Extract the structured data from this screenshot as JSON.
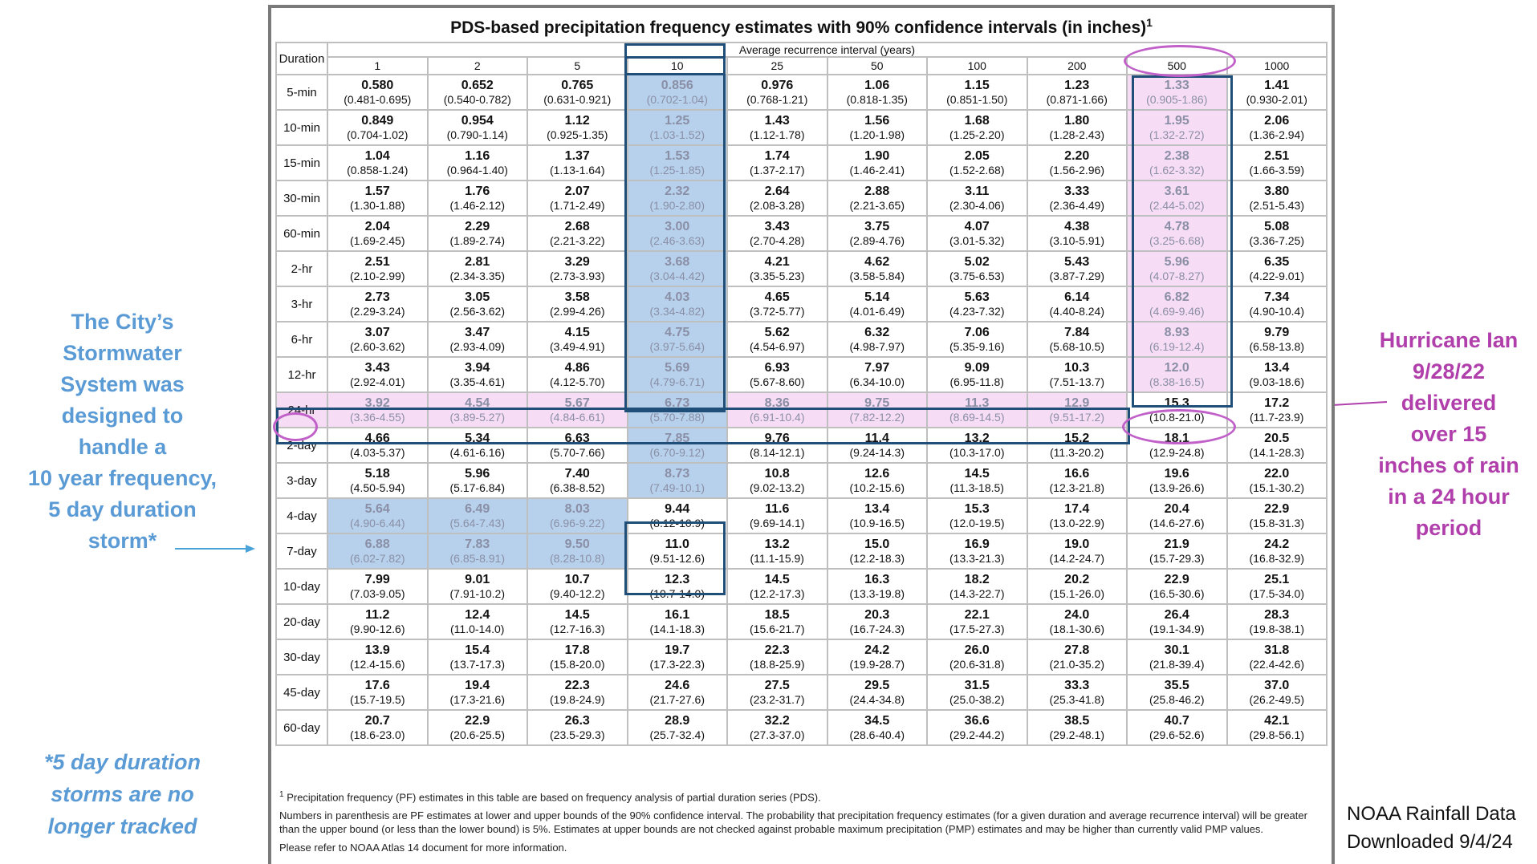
{
  "left_annotation": {
    "lines": [
      "The City’s",
      "Stormwater",
      "System was",
      "designed to",
      "handle a",
      "10 year frequency,",
      "5 day duration",
      "storm*"
    ],
    "color": "#5b9bd5"
  },
  "footnote_annotation": {
    "lines": [
      "*5 day duration",
      "storms are no",
      "longer tracked"
    ]
  },
  "right_annotation": {
    "lines": [
      "Hurricane Ian",
      "9/28/22",
      "delivered",
      "over 15",
      "inches of rain",
      "in a 24 hour",
      "period"
    ],
    "color": "#b03fab"
  },
  "source_note": {
    "lines": [
      "NOAA Rainfall Data",
      "Downloaded 9/4/24"
    ]
  },
  "table": {
    "title": "PDS-based precipitation frequency estimates with 90% confidence intervals (in inches)",
    "title_footnote_mark": "1",
    "duration_header": "Duration",
    "ari_header": "Average recurrence interval (years)",
    "intervals": [
      "1",
      "2",
      "5",
      "10",
      "25",
      "50",
      "100",
      "200",
      "500",
      "1000"
    ],
    "rows": [
      {
        "duration": "5-min",
        "values": [
          [
            "0.580",
            "(0.481-0.695)"
          ],
          [
            "0.652",
            "(0.540-0.782)"
          ],
          [
            "0.765",
            "(0.631-0.921)"
          ],
          [
            "0.856",
            "(0.702-1.04)"
          ],
          [
            "0.976",
            "(0.768-1.21)"
          ],
          [
            "1.06",
            "(0.818-1.35)"
          ],
          [
            "1.15",
            "(0.851-1.50)"
          ],
          [
            "1.23",
            "(0.871-1.66)"
          ],
          [
            "1.33",
            "(0.905-1.86)"
          ],
          [
            "1.41",
            "(0.930-2.01)"
          ]
        ]
      },
      {
        "duration": "10-min",
        "values": [
          [
            "0.849",
            "(0.704-1.02)"
          ],
          [
            "0.954",
            "(0.790-1.14)"
          ],
          [
            "1.12",
            "(0.925-1.35)"
          ],
          [
            "1.25",
            "(1.03-1.52)"
          ],
          [
            "1.43",
            "(1.12-1.78)"
          ],
          [
            "1.56",
            "(1.20-1.98)"
          ],
          [
            "1.68",
            "(1.25-2.20)"
          ],
          [
            "1.80",
            "(1.28-2.43)"
          ],
          [
            "1.95",
            "(1.32-2.72)"
          ],
          [
            "2.06",
            "(1.36-2.94)"
          ]
        ]
      },
      {
        "duration": "15-min",
        "values": [
          [
            "1.04",
            "(0.858-1.24)"
          ],
          [
            "1.16",
            "(0.964-1.40)"
          ],
          [
            "1.37",
            "(1.13-1.64)"
          ],
          [
            "1.53",
            "(1.25-1.85)"
          ],
          [
            "1.74",
            "(1.37-2.17)"
          ],
          [
            "1.90",
            "(1.46-2.41)"
          ],
          [
            "2.05",
            "(1.52-2.68)"
          ],
          [
            "2.20",
            "(1.56-2.96)"
          ],
          [
            "2.38",
            "(1.62-3.32)"
          ],
          [
            "2.51",
            "(1.66-3.59)"
          ]
        ]
      },
      {
        "duration": "30-min",
        "values": [
          [
            "1.57",
            "(1.30-1.88)"
          ],
          [
            "1.76",
            "(1.46-2.12)"
          ],
          [
            "2.07",
            "(1.71-2.49)"
          ],
          [
            "2.32",
            "(1.90-2.80)"
          ],
          [
            "2.64",
            "(2.08-3.28)"
          ],
          [
            "2.88",
            "(2.21-3.65)"
          ],
          [
            "3.11",
            "(2.30-4.06)"
          ],
          [
            "3.33",
            "(2.36-4.49)"
          ],
          [
            "3.61",
            "(2.44-5.02)"
          ],
          [
            "3.80",
            "(2.51-5.43)"
          ]
        ]
      },
      {
        "duration": "60-min",
        "values": [
          [
            "2.04",
            "(1.69-2.45)"
          ],
          [
            "2.29",
            "(1.89-2.74)"
          ],
          [
            "2.68",
            "(2.21-3.22)"
          ],
          [
            "3.00",
            "(2.46-3.63)"
          ],
          [
            "3.43",
            "(2.70-4.28)"
          ],
          [
            "3.75",
            "(2.89-4.76)"
          ],
          [
            "4.07",
            "(3.01-5.32)"
          ],
          [
            "4.38",
            "(3.10-5.91)"
          ],
          [
            "4.78",
            "(3.25-6.68)"
          ],
          [
            "5.08",
            "(3.36-7.25)"
          ]
        ]
      },
      {
        "duration": "2-hr",
        "values": [
          [
            "2.51",
            "(2.10-2.99)"
          ],
          [
            "2.81",
            "(2.34-3.35)"
          ],
          [
            "3.29",
            "(2.73-3.93)"
          ],
          [
            "3.68",
            "(3.04-4.42)"
          ],
          [
            "4.21",
            "(3.35-5.23)"
          ],
          [
            "4.62",
            "(3.58-5.84)"
          ],
          [
            "5.02",
            "(3.75-6.53)"
          ],
          [
            "5.43",
            "(3.87-7.29)"
          ],
          [
            "5.96",
            "(4.07-8.27)"
          ],
          [
            "6.35",
            "(4.22-9.01)"
          ]
        ]
      },
      {
        "duration": "3-hr",
        "values": [
          [
            "2.73",
            "(2.29-3.24)"
          ],
          [
            "3.05",
            "(2.56-3.62)"
          ],
          [
            "3.58",
            "(2.99-4.26)"
          ],
          [
            "4.03",
            "(3.34-4.82)"
          ],
          [
            "4.65",
            "(3.72-5.77)"
          ],
          [
            "5.14",
            "(4.01-6.49)"
          ],
          [
            "5.63",
            "(4.23-7.32)"
          ],
          [
            "6.14",
            "(4.40-8.24)"
          ],
          [
            "6.82",
            "(4.69-9.46)"
          ],
          [
            "7.34",
            "(4.90-10.4)"
          ]
        ]
      },
      {
        "duration": "6-hr",
        "values": [
          [
            "3.07",
            "(2.60-3.62)"
          ],
          [
            "3.47",
            "(2.93-4.09)"
          ],
          [
            "4.15",
            "(3.49-4.91)"
          ],
          [
            "4.75",
            "(3.97-5.64)"
          ],
          [
            "5.62",
            "(4.54-6.97)"
          ],
          [
            "6.32",
            "(4.98-7.97)"
          ],
          [
            "7.06",
            "(5.35-9.16)"
          ],
          [
            "7.84",
            "(5.68-10.5)"
          ],
          [
            "8.93",
            "(6.19-12.4)"
          ],
          [
            "9.79",
            "(6.58-13.8)"
          ]
        ]
      },
      {
        "duration": "12-hr",
        "values": [
          [
            "3.43",
            "(2.92-4.01)"
          ],
          [
            "3.94",
            "(3.35-4.61)"
          ],
          [
            "4.86",
            "(4.12-5.70)"
          ],
          [
            "5.69",
            "(4.79-6.71)"
          ],
          [
            "6.93",
            "(5.67-8.60)"
          ],
          [
            "7.97",
            "(6.34-10.0)"
          ],
          [
            "9.09",
            "(6.95-11.8)"
          ],
          [
            "10.3",
            "(7.51-13.7)"
          ],
          [
            "12.0",
            "(8.38-16.5)"
          ],
          [
            "13.4",
            "(9.03-18.6)"
          ]
        ]
      },
      {
        "duration": "24-hr",
        "values": [
          [
            "3.92",
            "(3.36-4.55)"
          ],
          [
            "4.54",
            "(3.89-5.27)"
          ],
          [
            "5.67",
            "(4.84-6.61)"
          ],
          [
            "6.73",
            "(5.70-7.88)"
          ],
          [
            "8.36",
            "(6.91-10.4)"
          ],
          [
            "9.75",
            "(7.82-12.2)"
          ],
          [
            "11.3",
            "(8.69-14.5)"
          ],
          [
            "12.9",
            "(9.51-17.2)"
          ],
          [
            "15.3",
            "(10.8-21.0)"
          ],
          [
            "17.2",
            "(11.7-23.9)"
          ]
        ]
      },
      {
        "duration": "2-day",
        "values": [
          [
            "4.66",
            "(4.03-5.37)"
          ],
          [
            "5.34",
            "(4.61-6.16)"
          ],
          [
            "6.63",
            "(5.70-7.66)"
          ],
          [
            "7.85",
            "(6.70-9.12)"
          ],
          [
            "9.76",
            "(8.14-12.1)"
          ],
          [
            "11.4",
            "(9.24-14.3)"
          ],
          [
            "13.2",
            "(10.3-17.0)"
          ],
          [
            "15.2",
            "(11.3-20.2)"
          ],
          [
            "18.1",
            "(12.9-24.8)"
          ],
          [
            "20.5",
            "(14.1-28.3)"
          ]
        ]
      },
      {
        "duration": "3-day",
        "values": [
          [
            "5.18",
            "(4.50-5.94)"
          ],
          [
            "5.96",
            "(5.17-6.84)"
          ],
          [
            "7.40",
            "(6.38-8.52)"
          ],
          [
            "8.73",
            "(7.49-10.1)"
          ],
          [
            "10.8",
            "(9.02-13.2)"
          ],
          [
            "12.6",
            "(10.2-15.6)"
          ],
          [
            "14.5",
            "(11.3-18.5)"
          ],
          [
            "16.6",
            "(12.3-21.8)"
          ],
          [
            "19.6",
            "(13.9-26.6)"
          ],
          [
            "22.0",
            "(15.1-30.2)"
          ]
        ]
      },
      {
        "duration": "4-day",
        "values": [
          [
            "5.64",
            "(4.90-6.44)"
          ],
          [
            "6.49",
            "(5.64-7.43)"
          ],
          [
            "8.03",
            "(6.96-9.22)"
          ],
          [
            "9.44",
            "(8.12-10.9)"
          ],
          [
            "11.6",
            "(9.69-14.1)"
          ],
          [
            "13.4",
            "(10.9-16.5)"
          ],
          [
            "15.3",
            "(12.0-19.5)"
          ],
          [
            "17.4",
            "(13.0-22.9)"
          ],
          [
            "20.4",
            "(14.6-27.6)"
          ],
          [
            "22.9",
            "(15.8-31.3)"
          ]
        ]
      },
      {
        "duration": "7-day",
        "values": [
          [
            "6.88",
            "(6.02-7.82)"
          ],
          [
            "7.83",
            "(6.85-8.91)"
          ],
          [
            "9.50",
            "(8.28-10.8)"
          ],
          [
            "11.0",
            "(9.51-12.6)"
          ],
          [
            "13.2",
            "(11.1-15.9)"
          ],
          [
            "15.0",
            "(12.2-18.3)"
          ],
          [
            "16.9",
            "(13.3-21.3)"
          ],
          [
            "19.0",
            "(14.2-24.7)"
          ],
          [
            "21.9",
            "(15.7-29.3)"
          ],
          [
            "24.2",
            "(16.8-32.9)"
          ]
        ]
      },
      {
        "duration": "10-day",
        "values": [
          [
            "7.99",
            "(7.03-9.05)"
          ],
          [
            "9.01",
            "(7.91-10.2)"
          ],
          [
            "10.7",
            "(9.40-12.2)"
          ],
          [
            "12.3",
            "(10.7-14.0)"
          ],
          [
            "14.5",
            "(12.2-17.3)"
          ],
          [
            "16.3",
            "(13.3-19.8)"
          ],
          [
            "18.2",
            "(14.3-22.7)"
          ],
          [
            "20.2",
            "(15.1-26.0)"
          ],
          [
            "22.9",
            "(16.5-30.6)"
          ],
          [
            "25.1",
            "(17.5-34.0)"
          ]
        ]
      },
      {
        "duration": "20-day",
        "values": [
          [
            "11.2",
            "(9.90-12.6)"
          ],
          [
            "12.4",
            "(11.0-14.0)"
          ],
          [
            "14.5",
            "(12.7-16.3)"
          ],
          [
            "16.1",
            "(14.1-18.3)"
          ],
          [
            "18.5",
            "(15.6-21.7)"
          ],
          [
            "20.3",
            "(16.7-24.3)"
          ],
          [
            "22.1",
            "(17.5-27.3)"
          ],
          [
            "24.0",
            "(18.1-30.6)"
          ],
          [
            "26.4",
            "(19.1-34.9)"
          ],
          [
            "28.3",
            "(19.8-38.1)"
          ]
        ]
      },
      {
        "duration": "30-day",
        "values": [
          [
            "13.9",
            "(12.4-15.6)"
          ],
          [
            "15.4",
            "(13.7-17.3)"
          ],
          [
            "17.8",
            "(15.8-20.0)"
          ],
          [
            "19.7",
            "(17.3-22.3)"
          ],
          [
            "22.3",
            "(18.8-25.9)"
          ],
          [
            "24.2",
            "(19.9-28.7)"
          ],
          [
            "26.0",
            "(20.6-31.8)"
          ],
          [
            "27.8",
            "(21.0-35.2)"
          ],
          [
            "30.1",
            "(21.8-39.4)"
          ],
          [
            "31.8",
            "(22.4-42.6)"
          ]
        ]
      },
      {
        "duration": "45-day",
        "values": [
          [
            "17.6",
            "(15.7-19.5)"
          ],
          [
            "19.4",
            "(17.3-21.6)"
          ],
          [
            "22.3",
            "(19.8-24.9)"
          ],
          [
            "24.6",
            "(21.7-27.6)"
          ],
          [
            "27.5",
            "(23.2-31.7)"
          ],
          [
            "29.5",
            "(24.4-34.8)"
          ],
          [
            "31.5",
            "(25.0-38.2)"
          ],
          [
            "33.3",
            "(25.3-41.8)"
          ],
          [
            "35.5",
            "(25.8-46.2)"
          ],
          [
            "37.0",
            "(26.2-49.5)"
          ]
        ]
      },
      {
        "duration": "60-day",
        "values": [
          [
            "20.7",
            "(18.6-23.0)"
          ],
          [
            "22.9",
            "(20.6-25.5)"
          ],
          [
            "26.3",
            "(23.5-29.3)"
          ],
          [
            "28.9",
            "(25.7-32.4)"
          ],
          [
            "32.2",
            "(27.3-37.0)"
          ],
          [
            "34.5",
            "(28.6-40.4)"
          ],
          [
            "36.6",
            "(29.2-44.2)"
          ],
          [
            "38.5",
            "(29.2-48.1)"
          ],
          [
            "40.7",
            "(29.6-52.6)"
          ],
          [
            "42.1",
            "(29.8-56.1)"
          ]
        ]
      }
    ],
    "notes": [
      {
        "mark": "1",
        "text": "Precipitation frequency (PF) estimates in this table are based on frequency analysis of partial duration series (PDS)."
      },
      {
        "mark": "",
        "text": "Numbers in parenthesis are PF estimates at lower and upper bounds of the 90% confidence interval. The probability that precipitation frequency estimates (for a given duration and average recurrence interval) will be greater than the upper bound (or less than the lower bound) is 5%. Estimates at upper bounds are not checked against probable maximum precipitation (PMP) estimates and may be higher than currently valid PMP values."
      },
      {
        "mark": "",
        "text": "Please refer to NOAA Atlas 14 document for more information."
      }
    ]
  },
  "highlight_colors": {
    "blue_fill": "#b7d1ec",
    "pink_fill": "#f6dcf4",
    "blue_outline": "#1f4e79",
    "pink_outline": "#c060c8"
  }
}
